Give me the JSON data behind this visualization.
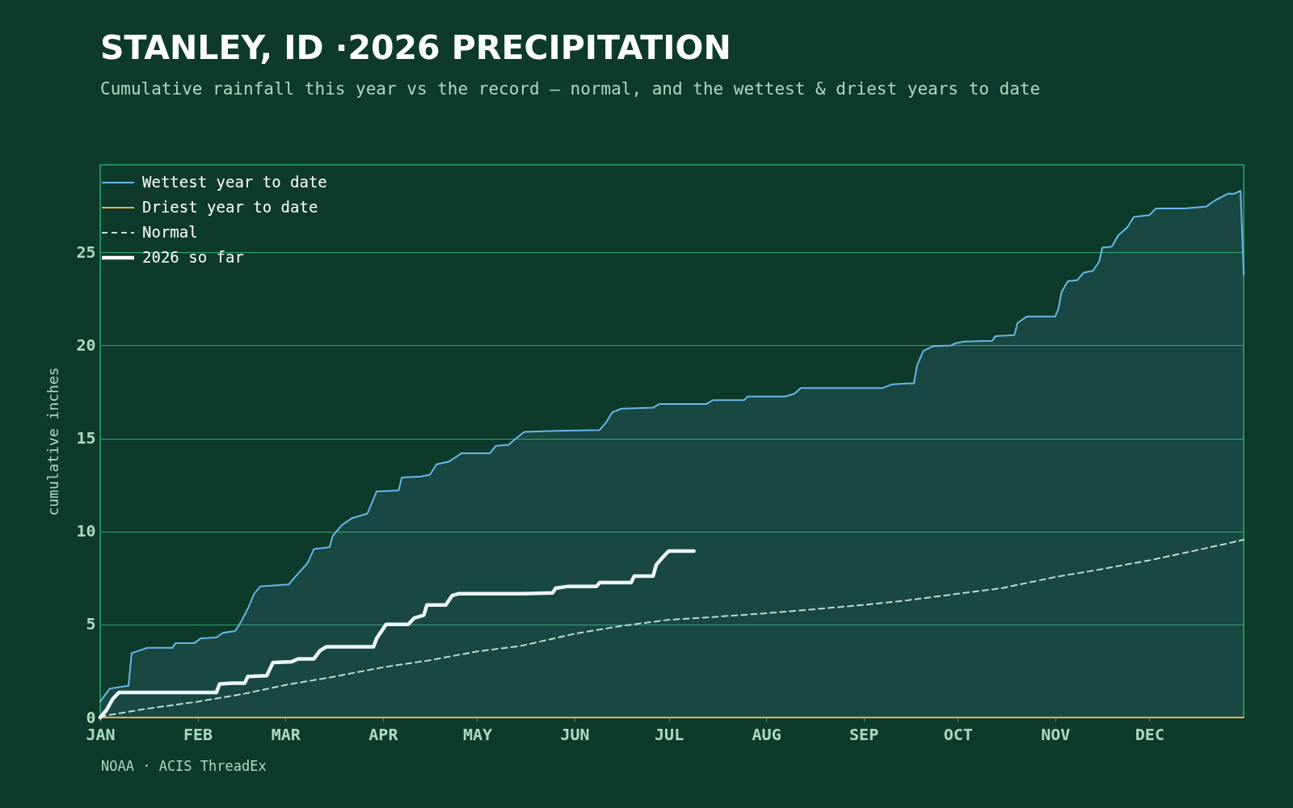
{
  "chart_data": {
    "type": "line",
    "title": "STANLEY, ID ·2026 PRECIPITATION",
    "subtitle": "Cumulative rainfall this year vs the record — normal, and the wettest & driest years to date",
    "ylabel": "cumulative inches",
    "annotations": [
      "NOAA · ACIS ThreadEx"
    ],
    "xlim": [
      "2026-01-01",
      "2026-12-31"
    ],
    "xticks": [
      {
        "value": "2026-01-01",
        "label": "JAN"
      },
      {
        "value": "2026-02-01",
        "label": "FEB"
      },
      {
        "value": "2026-03-01",
        "label": "MAR"
      },
      {
        "value": "2026-04-01",
        "label": "APR"
      },
      {
        "value": "2026-05-01",
        "label": "MAY"
      },
      {
        "value": "2026-06-01",
        "label": "JUN"
      },
      {
        "value": "2026-07-01",
        "label": "JUL"
      },
      {
        "value": "2026-08-01",
        "label": "AUG"
      },
      {
        "value": "2026-09-01",
        "label": "SEP"
      },
      {
        "value": "2026-10-01",
        "label": "OCT"
      },
      {
        "value": "2026-11-01",
        "label": "NOV"
      },
      {
        "value": "2026-12-01",
        "label": "DEC"
      }
    ],
    "ylim": [
      0,
      29.7
    ],
    "yticks": [
      0,
      5,
      10,
      15,
      20,
      25
    ],
    "grid": "y",
    "legend": "top left",
    "series": [
      {
        "name": "Wettest year to date",
        "type": "area",
        "color": "#6ab8e8",
        "line_style": "solid",
        "x": [
          "2026-01-01",
          "2026-01-04",
          "2026-01-10",
          "2026-01-11",
          "2026-01-16",
          "2026-01-24",
          "2026-01-25",
          "2026-01-31",
          "2026-02-02",
          "2026-02-07",
          "2026-02-09",
          "2026-02-13",
          "2026-02-15",
          "2026-02-17",
          "2026-02-19",
          "2026-02-21",
          "2026-03-02",
          "2026-03-04",
          "2026-03-08",
          "2026-03-10",
          "2026-03-15",
          "2026-03-16",
          "2026-03-19",
          "2026-03-22",
          "2026-03-27",
          "2026-03-30",
          "2026-04-06",
          "2026-04-07",
          "2026-04-13",
          "2026-04-16",
          "2026-04-18",
          "2026-04-22",
          "2026-04-26",
          "2026-05-05",
          "2026-05-07",
          "2026-05-11",
          "2026-05-13",
          "2026-05-16",
          "2026-05-26",
          "2026-06-09",
          "2026-06-11",
          "2026-06-13",
          "2026-06-16",
          "2026-06-26",
          "2026-06-28",
          "2026-07-13",
          "2026-07-15",
          "2026-07-25",
          "2026-07-26",
          "2026-08-07",
          "2026-08-10",
          "2026-08-12",
          "2026-09-07",
          "2026-09-10",
          "2026-09-15",
          "2026-09-17",
          "2026-09-18",
          "2026-09-20",
          "2026-09-23",
          "2026-09-29",
          "2026-09-30",
          "2026-10-03",
          "2026-10-12",
          "2026-10-13",
          "2026-10-19",
          "2026-10-20",
          "2026-10-23",
          "2026-11-01",
          "2026-11-02",
          "2026-11-03",
          "2026-11-05",
          "2026-11-08",
          "2026-11-10",
          "2026-11-13",
          "2026-11-15",
          "2026-11-16",
          "2026-11-19",
          "2026-11-21",
          "2026-11-24",
          "2026-11-26",
          "2026-12-01",
          "2026-12-03",
          "2026-12-12",
          "2026-12-19",
          "2026-12-22",
          "2026-12-26",
          "2026-12-28",
          "2026-12-30",
          "2026-12-31"
        ],
        "values": [
          0.85,
          1.55,
          1.7,
          3.45,
          3.75,
          3.75,
          4.0,
          4.0,
          4.25,
          4.3,
          4.55,
          4.65,
          5.2,
          5.85,
          6.65,
          7.05,
          7.15,
          7.55,
          8.3,
          9.05,
          9.15,
          9.75,
          10.35,
          10.7,
          10.95,
          12.15,
          12.2,
          12.9,
          12.95,
          13.05,
          13.6,
          13.75,
          14.2,
          14.2,
          14.6,
          14.65,
          14.95,
          15.35,
          15.4,
          15.45,
          15.85,
          16.4,
          16.6,
          16.65,
          16.85,
          16.85,
          17.05,
          17.05,
          17.25,
          17.25,
          17.4,
          17.7,
          17.7,
          17.9,
          17.95,
          17.95,
          18.9,
          19.7,
          19.95,
          20.0,
          20.1,
          20.2,
          20.25,
          20.5,
          20.55,
          21.2,
          21.55,
          21.55,
          21.95,
          22.85,
          23.45,
          23.5,
          23.9,
          24.0,
          24.5,
          25.25,
          25.3,
          25.9,
          26.35,
          26.9,
          27.0,
          27.35,
          27.35,
          27.45,
          27.8,
          28.15,
          28.15,
          28.3,
          23.8
        ]
      },
      {
        "name": "Driest year to date",
        "type": "line",
        "color": "#e8b04a",
        "line_style": "solid",
        "x": [
          "2026-01-01",
          "2026-12-31"
        ],
        "values": [
          0,
          0
        ]
      },
      {
        "name": "Normal",
        "type": "line",
        "color": "#c8e0d0",
        "line_style": "dashed",
        "x": [
          "2026-01-01",
          "2026-01-15",
          "2026-02-01",
          "2026-02-15",
          "2026-03-01",
          "2026-03-15",
          "2026-04-01",
          "2026-04-15",
          "2026-05-01",
          "2026-05-15",
          "2026-06-01",
          "2026-06-15",
          "2026-07-01",
          "2026-07-15",
          "2026-08-01",
          "2026-08-15",
          "2026-09-01",
          "2026-09-15",
          "2026-10-01",
          "2026-10-15",
          "2026-11-01",
          "2026-11-15",
          "2026-12-01",
          "2026-12-15",
          "2026-12-31"
        ],
        "values": [
          0.05,
          0.45,
          0.85,
          1.25,
          1.75,
          2.15,
          2.7,
          3.05,
          3.55,
          3.85,
          4.5,
          4.9,
          5.25,
          5.4,
          5.6,
          5.8,
          6.05,
          6.3,
          6.65,
          6.95,
          7.55,
          7.95,
          8.45,
          8.95,
          9.55
        ]
      },
      {
        "name": "2026 so far",
        "type": "line",
        "color": "#ffffff",
        "line_style": "solid",
        "x": [
          "2026-01-01",
          "2026-01-03",
          "2026-01-05",
          "2026-01-07",
          "2026-02-07",
          "2026-02-08",
          "2026-02-12",
          "2026-02-16",
          "2026-02-17",
          "2026-02-23",
          "2026-02-25",
          "2026-03-03",
          "2026-03-05",
          "2026-03-10",
          "2026-03-12",
          "2026-03-14",
          "2026-03-29",
          "2026-03-30",
          "2026-04-02",
          "2026-04-09",
          "2026-04-11",
          "2026-04-14",
          "2026-04-15",
          "2026-04-21",
          "2026-04-23",
          "2026-04-25",
          "2026-05-16",
          "2026-05-25",
          "2026-05-26",
          "2026-05-30",
          "2026-06-08",
          "2026-06-09",
          "2026-06-19",
          "2026-06-20",
          "2026-06-26",
          "2026-06-27",
          "2026-06-29",
          "2026-07-01",
          "2026-07-09"
        ],
        "values": [
          0,
          0.4,
          1.0,
          1.35,
          1.35,
          1.8,
          1.85,
          1.85,
          2.2,
          2.25,
          2.95,
          3.0,
          3.15,
          3.15,
          3.6,
          3.8,
          3.8,
          4.25,
          5.0,
          5.0,
          5.35,
          5.5,
          6.05,
          6.05,
          6.55,
          6.65,
          6.65,
          6.7,
          6.95,
          7.05,
          7.05,
          7.25,
          7.25,
          7.6,
          7.6,
          8.2,
          8.6,
          8.95,
          8.95
        ]
      }
    ]
  }
}
